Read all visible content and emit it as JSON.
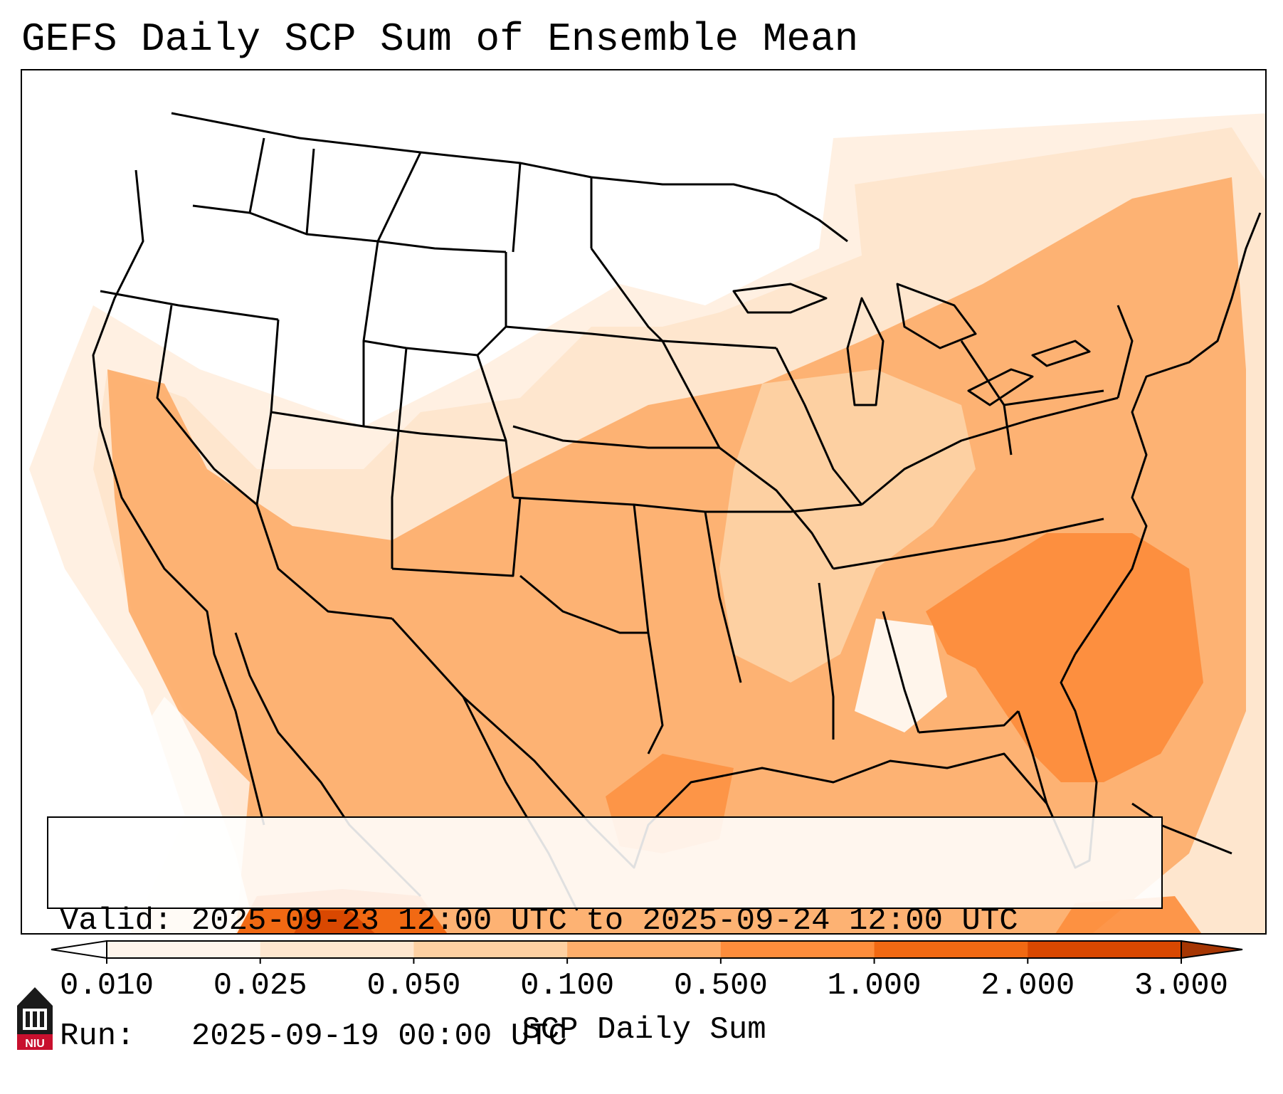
{
  "title": "GEFS Daily SCP Sum of Ensemble Mean",
  "validity": {
    "valid_label": "Valid:",
    "valid_value": "2025-09-23 12:00 UTC to 2025-09-24 12:00 UTC",
    "run_label": "Run:",
    "run_value": "2025-09-19 00:00 UTC"
  },
  "colorbar": {
    "label": "SCP Daily Sum",
    "ticks": [
      "0.010",
      "0.025",
      "0.050",
      "0.100",
      "0.500",
      "1.000",
      "2.000",
      "3.000"
    ],
    "colors": [
      "#fff5eb",
      "#fee6ce",
      "#fdd0a2",
      "#fdae6b",
      "#fd8d3c",
      "#f16913",
      "#d94801"
    ],
    "extend_min_color": "#ffffff",
    "extend_max_color": "#a63603"
  },
  "logo": {
    "text": "NIU",
    "icon": "niu-tower-logo-icon"
  },
  "map": {
    "projection": "lambert-conformal-conus",
    "field": "SCP daily sum (ensemble mean)",
    "boundaries": [
      "state-lines",
      "country-borders",
      "coastlines"
    ]
  }
}
